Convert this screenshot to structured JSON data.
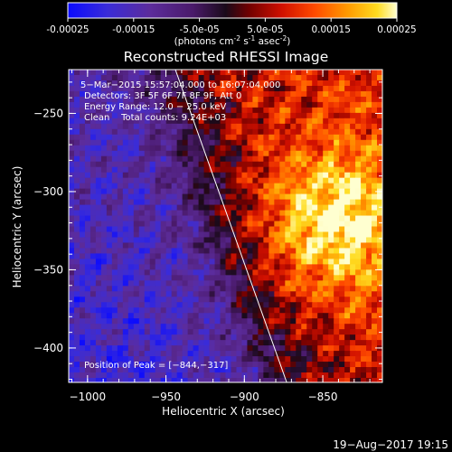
{
  "colorbar": {
    "tick_labels": [
      "-0.00025",
      "-0.00015",
      "-5.0e-05",
      "5.0e-05",
      "0.00015",
      "0.00025"
    ],
    "tick_values": [
      -0.00025,
      -0.00015,
      -5e-05,
      5e-05,
      0.00015,
      0.00025
    ],
    "range": [
      -0.00025,
      0.00025
    ],
    "unit_prefix": "(photons cm",
    "unit_exp1": "-2",
    "unit_mid": " s",
    "unit_exp2": "-1",
    "unit_suffix": " asec",
    "unit_exp3": "-2",
    "unit_close": ")",
    "colormap": "rainbow-thermal"
  },
  "chart_data": {
    "type": "heatmap",
    "title": "Reconstructed RHESSI Image",
    "xlabel": "Heliocentric X (arcsec)",
    "ylabel": "Heliocentric Y (arcsec)",
    "xlim": [
      -1012,
      -812
    ],
    "ylim": [
      -422,
      -222
    ],
    "xticks": [
      -1000,
      -950,
      -900,
      -850
    ],
    "xtick_labels": [
      "−1000",
      "−950",
      "−900",
      "−850"
    ],
    "yticks": [
      -400,
      -350,
      -300,
      -250
    ],
    "ytick_labels": [
      "−400",
      "−350",
      "−300",
      "−250"
    ],
    "limb_line": {
      "x": [
        -944,
        -873
      ],
      "y": [
        -222,
        -422
      ]
    },
    "peak": {
      "x": -844,
      "y": -317
    },
    "annotations": [
      "5−Mar−2015 15:57:04.000 to 16:07:04.000",
      "Detectors: 3F 5F 6F 7F 8F 9F, Att 0",
      "Energy Range: 12.0 − 25.0 keV",
      "Clean    Total counts: 9.24E+03"
    ],
    "peak_label": "Position of Peak = [−844,−317]"
  },
  "timestamp": "19−Aug−2017 19:15"
}
